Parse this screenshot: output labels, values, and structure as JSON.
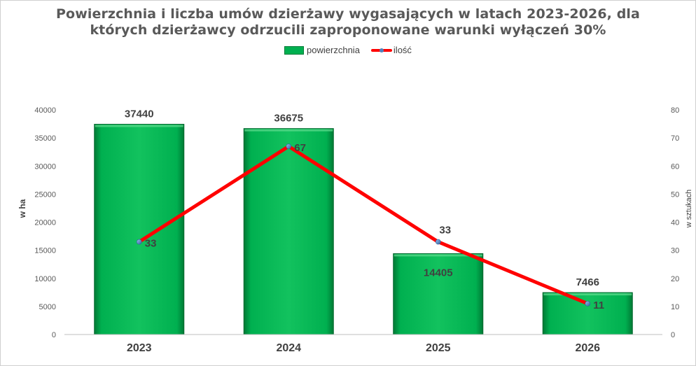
{
  "chart_data": {
    "type": "bar",
    "title_lines": [
      "Powierzchnia i liczba umów dzierżawy wygasających w latach 2023-2026, dla",
      "których dzierżawcy odrzucili zaproponowane warunki wyłączeń 30%"
    ],
    "categories": [
      "2023",
      "2024",
      "2025",
      "2026"
    ],
    "series": [
      {
        "name": "powierzchnia",
        "kind": "bar",
        "axis": "left",
        "values": [
          37440,
          36675,
          14405,
          7466
        ],
        "color": "#00b050"
      },
      {
        "name": "ilość",
        "kind": "line",
        "axis": "right",
        "values": [
          33,
          67,
          33,
          11
        ],
        "color": "#ff0000",
        "marker_color": "#4f81bd"
      }
    ],
    "ylabel": "w ha",
    "y2label": "w sztukach",
    "ylim": [
      0,
      40000
    ],
    "y2lim": [
      0,
      80
    ],
    "yticks": [
      "0",
      "5000",
      "10000",
      "15000",
      "20000",
      "25000",
      "30000",
      "35000",
      "40000"
    ],
    "y2ticks": [
      "0",
      "10",
      "20",
      "30",
      "40",
      "50",
      "60",
      "70",
      "80"
    ],
    "legend_position": "top-center",
    "grid": false
  }
}
